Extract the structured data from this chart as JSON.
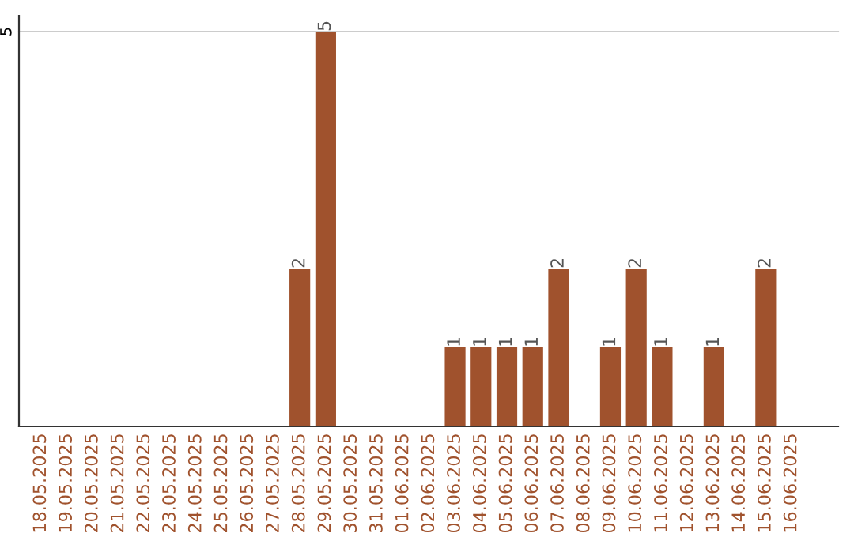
{
  "chart_data": {
    "type": "bar",
    "categories": [
      "18.05.2025",
      "19.05.2025",
      "20.05.2025",
      "21.05.2025",
      "22.05.2025",
      "23.05.2025",
      "24.05.2025",
      "25.05.2025",
      "26.05.2025",
      "27.05.2025",
      "28.05.2025",
      "29.05.2025",
      "30.05.2025",
      "31.05.2025",
      "01.06.2025",
      "02.06.2025",
      "03.06.2025",
      "04.06.2025",
      "05.06.2025",
      "06.06.2025",
      "07.06.2025",
      "08.06.2025",
      "09.06.2025",
      "10.06.2025",
      "11.06.2025",
      "12.06.2025",
      "13.06.2025",
      "14.06.2025",
      "15.06.2025",
      "16.06.2025"
    ],
    "values": [
      0,
      0,
      0,
      0,
      0,
      0,
      0,
      0,
      0,
      0,
      2,
      5,
      0,
      0,
      0,
      0,
      1,
      1,
      1,
      1,
      2,
      0,
      1,
      2,
      1,
      0,
      1,
      0,
      2,
      0
    ],
    "value_labels": [
      null,
      null,
      null,
      null,
      null,
      null,
      null,
      null,
      null,
      null,
      "2",
      "5",
      null,
      null,
      null,
      null,
      "1",
      "1",
      "1",
      "1",
      "2",
      null,
      "1",
      "2",
      "1",
      null,
      "1",
      null,
      "2",
      null
    ],
    "color": "#a0522d",
    "ylim": [
      0,
      5.2
    ],
    "yticks": [
      5
    ],
    "grid": "y",
    "legend": false
  }
}
